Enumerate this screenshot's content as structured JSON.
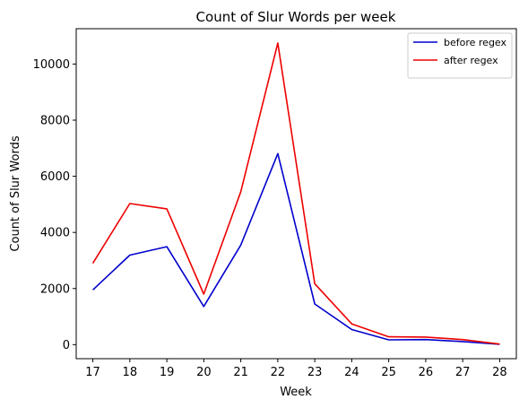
{
  "chart_data": {
    "type": "line",
    "title": "Count of Slur Words per week",
    "xlabel": "Week",
    "ylabel": "Count of Slur Words",
    "x": [
      17,
      18,
      19,
      20,
      21,
      22,
      23,
      24,
      25,
      26,
      27,
      28
    ],
    "xlim": [
      16.55,
      28.45
    ],
    "ylim": [
      -500,
      11260
    ],
    "yticks": [
      0,
      2000,
      4000,
      6000,
      8000,
      10000
    ],
    "grid": false,
    "legend_position": "top-right",
    "series": [
      {
        "name": "before regex",
        "color": "#0000cc",
        "values": [
          1950,
          3190,
          3490,
          1360,
          3550,
          6810,
          1450,
          540,
          170,
          180,
          110,
          10
        ]
      },
      {
        "name": "after regex",
        "color": "#ee0000",
        "values": [
          2900,
          5030,
          4840,
          1800,
          5450,
          10750,
          2170,
          740,
          280,
          270,
          180,
          20
        ]
      }
    ]
  }
}
